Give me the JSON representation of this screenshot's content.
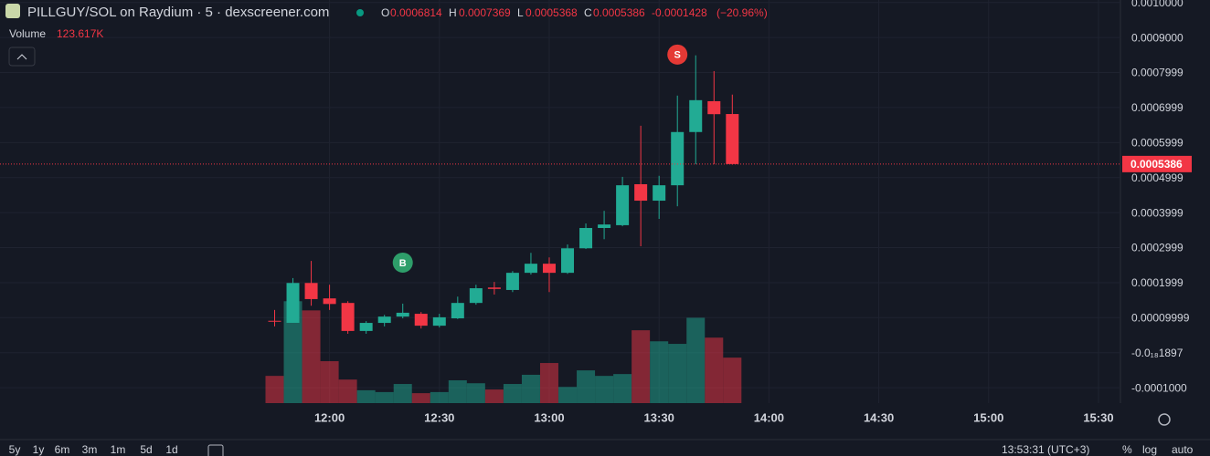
{
  "header": {
    "title": "PILLGUY/SOL on Raydium · 5 · dexscreener.com",
    "o_label": "O",
    "o": "0.0006814",
    "h_label": "H",
    "h": "0.0007369",
    "l_label": "L",
    "l": "0.0005368",
    "c_label": "C",
    "c": "0.0005386",
    "change": "-0.0001428",
    "change_pct": "(−20.96%)",
    "volume_title": "Volume",
    "volume_value": "123.617K"
  },
  "chart_data": {
    "type": "candlestick",
    "x": [
      "11:45",
      "11:50",
      "11:55",
      "12:00",
      "12:05",
      "12:10",
      "12:15",
      "12:20",
      "12:25",
      "12:30",
      "12:35",
      "12:40",
      "12:45",
      "12:50",
      "12:55",
      "13:00",
      "13:05",
      "13:10",
      "13:15",
      "13:20",
      "13:25",
      "13:30",
      "13:35",
      "13:40",
      "13:45",
      "13:50"
    ],
    "open": [
      9.1e-05,
      8.52e-05,
      0.000199,
      0.000155,
      0.000142,
      6.2e-05,
      8.5e-05,
      0.000103,
      0.000111,
      7.7e-05,
      9.8e-05,
      0.000142,
      0.000186,
      0.000179,
      0.000228,
      0.000254,
      0.000228,
      0.000298,
      0.000356,
      0.000364,
      0.000481,
      0.000434,
      0.000478,
      0.00063,
      0.000718,
      0.0006814
    ],
    "high": [
      0.000122,
      0.000213,
      0.000262,
      0.000194,
      0.000147,
      9e-05,
      0.000108,
      0.00014,
      0.000116,
      0.000111,
      0.00016,
      0.000194,
      0.000202,
      0.000233,
      0.000285,
      0.000272,
      0.000309,
      0.000369,
      0.000405,
      0.000502,
      0.000648,
      0.000505,
      0.000734,
      0.000849,
      0.000804,
      0.0007369
    ],
    "low": [
      7.5e-05,
      8.52e-05,
      0.000134,
      0.000122,
      5.4e-05,
      5.4e-05,
      7.5e-05,
      9.8e-05,
      6.9e-05,
      7.2e-05,
      9.6e-05,
      0.000137,
      0.000166,
      0.000173,
      0.000223,
      0.000173,
      0.000225,
      0.000296,
      0.000324,
      0.000361,
      0.000304,
      0.000382,
      0.000418,
      0.000538,
      0.000538,
      0.0005368
    ],
    "close": [
      9e-05,
      0.000199,
      0.000153,
      0.000139,
      6.2e-05,
      8.5e-05,
      0.000103,
      0.000114,
      7.7e-05,
      0.000101,
      0.000142,
      0.000184,
      0.000182,
      0.000228,
      0.000254,
      0.000228,
      0.000298,
      0.000356,
      0.000366,
      0.000478,
      0.000434,
      0.000478,
      0.00063,
      0.000721,
      0.000681,
      0.0005386
    ],
    "volume": [
      74000,
      277000,
      252000,
      114000,
      64000,
      35000,
      30000,
      52000,
      27000,
      30000,
      62000,
      54000,
      37000,
      52000,
      77000,
      109000,
      44000,
      89000,
      74000,
      79000,
      198000,
      168000,
      161000,
      232000,
      178000,
      123617
    ],
    "volume_ylim": [
      0,
      300000
    ],
    "ylim": [
      -0.000144,
      0.001007
    ],
    "yticks": [
      {
        "value": 0.001,
        "label": "0.0010000"
      },
      {
        "value": 0.0009,
        "label": "0.0009000"
      },
      0.0007999,
      0.0006999,
      0.0005999,
      0.0004999,
      0.0003999,
      0.0002999,
      0.0001999,
      9.999e-05,
      {
        "value": -1.897e-20,
        "label": "-0.0₁₈1897"
      },
      {
        "value": -0.0001,
        "label": "-0.0001000"
      }
    ],
    "xlim": [
      "10:30",
      "15:36"
    ],
    "xticks": [
      "12:00",
      "12:30",
      "13:00",
      "13:30",
      "14:00",
      "14:30",
      "15:00",
      "15:30"
    ],
    "up_color": "#22ab94",
    "down_color": "#f23645",
    "markers": [
      {
        "x": "12:20",
        "label": "B",
        "color": "#2e9e6a"
      },
      {
        "x": "13:35",
        "label": "S",
        "color": "#e53935"
      }
    ],
    "grid": true
  },
  "toolbar": {
    "ranges": [
      "5y",
      "1y",
      "6m",
      "3m",
      "1m",
      "5d",
      "1d"
    ],
    "clock": "13:53:31 (UTC+3)",
    "pct": "%",
    "log": "log",
    "auto": "auto"
  }
}
